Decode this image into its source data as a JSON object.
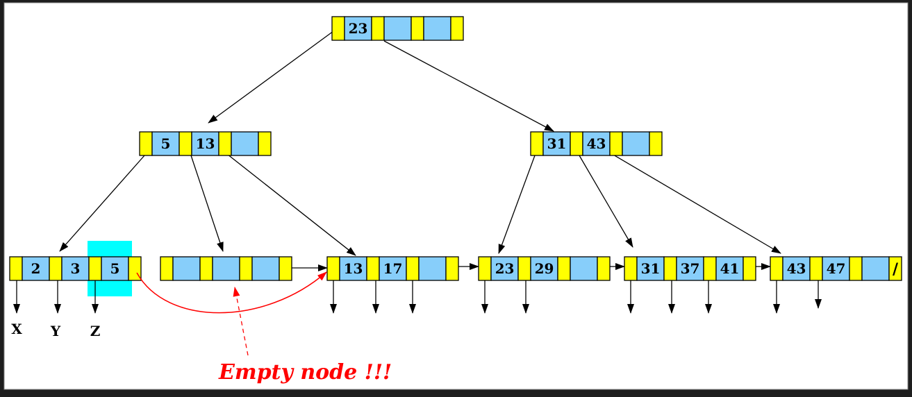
{
  "diagram": {
    "root": {
      "keys": [
        "23",
        "",
        ""
      ]
    },
    "internal_left": {
      "keys": [
        "5",
        "13",
        ""
      ]
    },
    "internal_right": {
      "keys": [
        "31",
        "43",
        ""
      ]
    },
    "leaves": [
      {
        "id": "leaf1",
        "keys": [
          "2",
          "3",
          "5"
        ]
      },
      {
        "id": "leaf2",
        "keys": [
          "",
          "",
          ""
        ]
      },
      {
        "id": "leaf3",
        "keys": [
          "13",
          "17",
          ""
        ]
      },
      {
        "id": "leaf4",
        "keys": [
          "23",
          "29",
          ""
        ]
      },
      {
        "id": "leaf5",
        "keys": [
          "31",
          "37",
          "41"
        ]
      },
      {
        "id": "leaf6",
        "keys": [
          "43",
          "47",
          ""
        ],
        "end_marker": "/"
      }
    ],
    "record_labels": [
      "X",
      "Y",
      "Z"
    ],
    "annotation": "Empty node !!!",
    "colors": {
      "key_cell": "#87CEFA",
      "pointer_cell": "#FFFF00",
      "highlight": "#00FFFF",
      "annotation": "#FF0000",
      "arrow": "#000000",
      "background": "#FFFFFF"
    }
  }
}
